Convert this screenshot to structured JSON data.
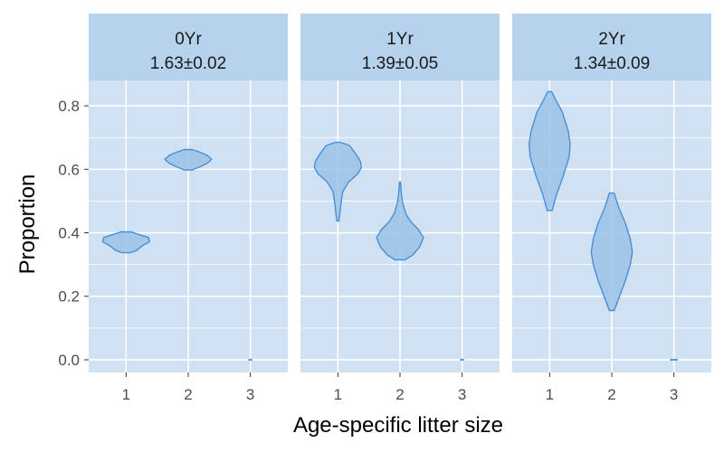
{
  "chart_data": {
    "type": "violin",
    "xlabel": "Age-specific litter size",
    "ylabel": "Proportion",
    "categories": [
      "1",
      "2",
      "3"
    ],
    "y_ticks": [
      "0.0",
      "0.2",
      "0.4",
      "0.6",
      "0.8"
    ],
    "ylim": [
      -0.04,
      0.88
    ],
    "grid": true,
    "colors": {
      "panel_bg": "#cfe1f2",
      "strip_bg": "#b6d2ec",
      "grid": "#ffffff",
      "violin_fill": "#9bc2e6",
      "violin_stroke": "#4a8fd4"
    },
    "facets": [
      {
        "label": "0Yr",
        "sublabel": "1.63±0.02",
        "violins": [
          {
            "category": "1",
            "profile": [
              [
                0.337,
                0.08
              ],
              [
                0.345,
                0.22
              ],
              [
                0.36,
                0.34
              ],
              [
                0.372,
                0.48
              ],
              [
                0.385,
                0.46
              ],
              [
                0.395,
                0.26
              ],
              [
                0.403,
                0.1
              ]
            ]
          },
          {
            "category": "2",
            "profile": [
              [
                0.598,
                0.08
              ],
              [
                0.608,
                0.24
              ],
              [
                0.62,
                0.4
              ],
              [
                0.632,
                0.48
              ],
              [
                0.645,
                0.38
              ],
              [
                0.655,
                0.22
              ],
              [
                0.662,
                0.08
              ]
            ]
          },
          {
            "category": "3",
            "profile": [
              [
                0.0,
                0.05
              ]
            ]
          }
        ]
      },
      {
        "label": "1Yr",
        "sublabel": "1.39±0.05",
        "violins": [
          {
            "category": "1",
            "profile": [
              [
                0.437,
                0.02
              ],
              [
                0.46,
                0.04
              ],
              [
                0.49,
                0.06
              ],
              [
                0.53,
                0.1
              ],
              [
                0.56,
                0.22
              ],
              [
                0.585,
                0.4
              ],
              [
                0.605,
                0.48
              ],
              [
                0.625,
                0.46
              ],
              [
                0.65,
                0.36
              ],
              [
                0.675,
                0.24
              ],
              [
                0.685,
                0.05
              ]
            ]
          },
          {
            "category": "2",
            "profile": [
              [
                0.315,
                0.1
              ],
              [
                0.33,
                0.26
              ],
              [
                0.355,
                0.4
              ],
              [
                0.385,
                0.48
              ],
              [
                0.41,
                0.38
              ],
              [
                0.435,
                0.22
              ],
              [
                0.46,
                0.12
              ],
              [
                0.49,
                0.06
              ],
              [
                0.52,
                0.03
              ],
              [
                0.56,
                0.01
              ]
            ]
          },
          {
            "category": "3",
            "profile": [
              [
                0.0,
                0.05
              ]
            ]
          }
        ]
      },
      {
        "label": "2Yr",
        "sublabel": "1.34±0.09",
        "violins": [
          {
            "category": "1",
            "profile": [
              [
                0.47,
                0.05
              ],
              [
                0.52,
                0.14
              ],
              [
                0.58,
                0.28
              ],
              [
                0.64,
                0.4
              ],
              [
                0.68,
                0.42
              ],
              [
                0.72,
                0.38
              ],
              [
                0.78,
                0.26
              ],
              [
                0.82,
                0.12
              ],
              [
                0.845,
                0.04
              ]
            ]
          },
          {
            "category": "2",
            "profile": [
              [
                0.155,
                0.05
              ],
              [
                0.2,
                0.16
              ],
              [
                0.25,
                0.28
              ],
              [
                0.3,
                0.38
              ],
              [
                0.34,
                0.42
              ],
              [
                0.38,
                0.38
              ],
              [
                0.43,
                0.28
              ],
              [
                0.48,
                0.14
              ],
              [
                0.525,
                0.05
              ]
            ]
          },
          {
            "category": "3",
            "profile": [
              [
                0.0,
                0.1
              ]
            ]
          }
        ]
      }
    ]
  }
}
